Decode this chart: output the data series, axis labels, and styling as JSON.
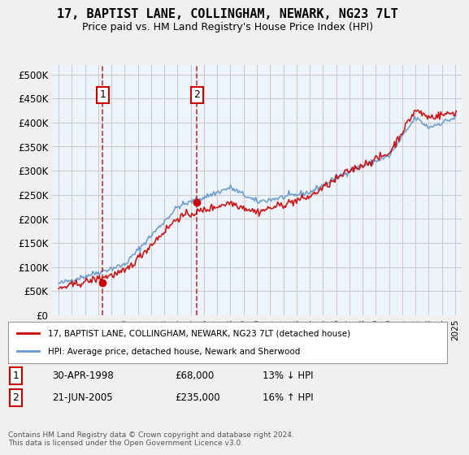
{
  "title": "17, BAPTIST LANE, COLLINGHAM, NEWARK, NG23 7LT",
  "subtitle": "Price paid vs. HM Land Registry's House Price Index (HPI)",
  "legend_line1": "17, BAPTIST LANE, COLLINGHAM, NEWARK, NG23 7LT (detached house)",
  "legend_line2": "HPI: Average price, detached house, Newark and Sherwood",
  "annotation1_label": "1",
  "annotation1_date": "30-APR-1998",
  "annotation1_price": "£68,000",
  "annotation1_hpi": "13% ↓ HPI",
  "annotation2_label": "2",
  "annotation2_date": "21-JUN-2005",
  "annotation2_price": "£235,000",
  "annotation2_hpi": "16% ↑ HPI",
  "sale1_year": 1998.33,
  "sale1_price": 68000,
  "sale2_year": 2005.47,
  "sale2_price": 235000,
  "footnote": "Contains HM Land Registry data © Crown copyright and database right 2024.\nThis data is licensed under the Open Government Licence v3.0.",
  "red_color": "#cc0000",
  "blue_color": "#6699cc",
  "bg_color": "#dce8f5",
  "plot_bg": "#ffffff",
  "grid_color": "#cccccc",
  "vline_color": "#cc0000",
  "ylim": [
    0,
    520000
  ],
  "yticks": [
    0,
    50000,
    100000,
    150000,
    200000,
    250000,
    300000,
    350000,
    400000,
    450000,
    500000
  ],
  "xlim_start": 1994.5,
  "xlim_end": 2025.5
}
